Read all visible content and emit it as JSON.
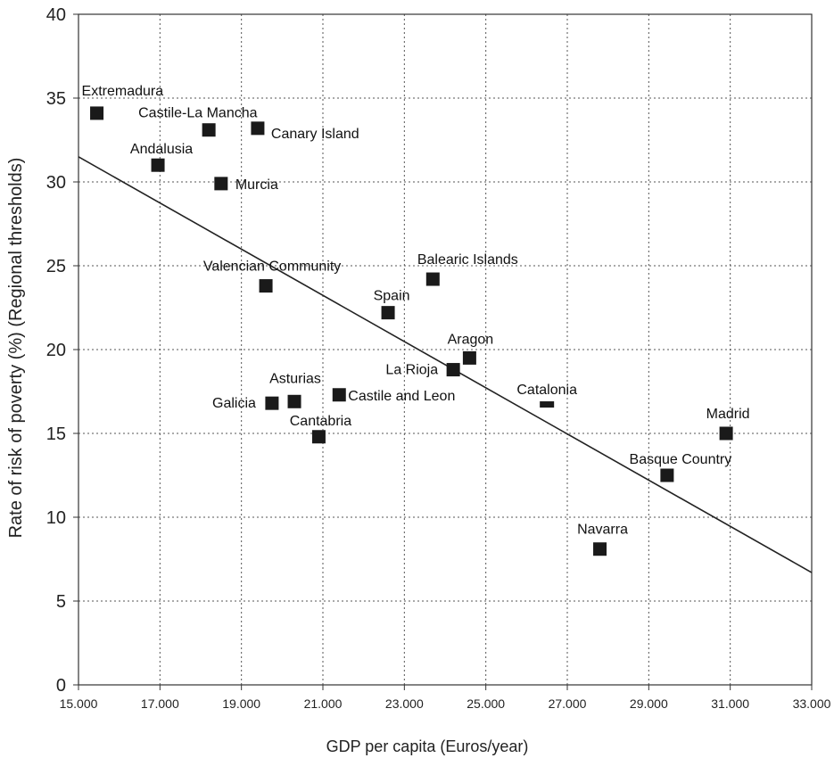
{
  "chart_data": {
    "type": "scatter",
    "title": "",
    "xlabel": "GDP per capita (Euros/year)",
    "ylabel": "Rate of risk of poverty (%) (Regional thresholds)",
    "xlim": [
      15000,
      33000
    ],
    "ylim": [
      0,
      40
    ],
    "x_ticks": [
      15000,
      17000,
      19000,
      21000,
      23000,
      25000,
      27000,
      29000,
      31000,
      33000
    ],
    "x_tick_labels": [
      "15.000",
      "17.000",
      "19.000",
      "21.000",
      "23.000",
      "25.000",
      "27.000",
      "29.000",
      "31.000",
      "33.000"
    ],
    "y_ticks": [
      0,
      5,
      10,
      15,
      20,
      25,
      30,
      35,
      40
    ],
    "y_tick_labels": [
      "0",
      "5",
      "10",
      "15",
      "20",
      "25",
      "30",
      "35",
      "40"
    ],
    "grid": true,
    "points": [
      {
        "label": "Extremadura",
        "x": 15450,
        "y": 34.1
      },
      {
        "label": "Castile-La Mancha",
        "x": 18200,
        "y": 33.1
      },
      {
        "label": "Canary Island",
        "x": 19400,
        "y": 33.2
      },
      {
        "label": "Andalusia",
        "x": 16950,
        "y": 31.0
      },
      {
        "label": "Murcia",
        "x": 18500,
        "y": 29.9
      },
      {
        "label": "Valencian Community",
        "x": 19600,
        "y": 23.8
      },
      {
        "label": "Balearic Islands",
        "x": 23700,
        "y": 24.2
      },
      {
        "label": "Spain",
        "x": 22600,
        "y": 22.2
      },
      {
        "label": "Aragon",
        "x": 24600,
        "y": 19.5
      },
      {
        "label": "La Rioja",
        "x": 24200,
        "y": 18.8
      },
      {
        "label": "Castile and Leon",
        "x": 21400,
        "y": 17.3
      },
      {
        "label": "Asturias",
        "x": 20300,
        "y": 16.9
      },
      {
        "label": "Galicia",
        "x": 19750,
        "y": 16.8
      },
      {
        "label": "Cantabria",
        "x": 20900,
        "y": 14.8
      },
      {
        "label": "Catalonia",
        "x": 26500,
        "y": 16.7
      },
      {
        "label": "Madrid",
        "x": 30900,
        "y": 15.0
      },
      {
        "label": "Basque Country",
        "x": 29450,
        "y": 12.5
      },
      {
        "label": "Navarra",
        "x": 27800,
        "y": 8.1
      }
    ],
    "trendline": {
      "x": [
        15000,
        33000
      ],
      "y": [
        31.5,
        6.7
      ]
    }
  }
}
